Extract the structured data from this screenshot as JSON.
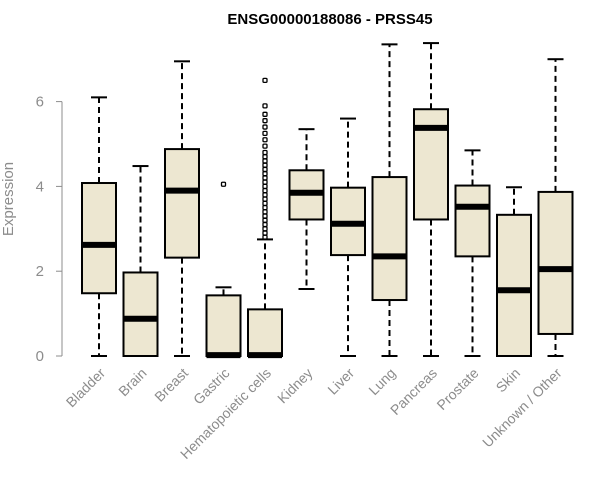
{
  "chart_data": {
    "type": "box",
    "title": "ENSG00000188086 - PRSS45",
    "xlabel": "",
    "ylabel": "Expression",
    "ylim": [
      0,
      7.4
    ],
    "yticks": [
      0,
      2,
      4,
      6
    ],
    "grid": false,
    "box_color": "#ede7d1",
    "categories": [
      "Bladder",
      "Brain",
      "Breast",
      "Gastric",
      "Hematopoietic cells",
      "Kidney",
      "Liver",
      "Lung",
      "Pancreas",
      "Prostate",
      "Skin",
      "Unknown / Other"
    ],
    "boxes": [
      {
        "category": "Bladder",
        "whisker_low": 0,
        "q1": 1.48,
        "median": 2.62,
        "q3": 4.08,
        "whisker_high": 6.1,
        "outliers": []
      },
      {
        "category": "Brain",
        "whisker_low": 0,
        "q1": 0,
        "median": 0.88,
        "q3": 1.97,
        "whisker_high": 4.48,
        "outliers": []
      },
      {
        "category": "Breast",
        "whisker_low": 0,
        "q1": 2.32,
        "median": 3.9,
        "q3": 4.88,
        "whisker_high": 6.95,
        "outliers": []
      },
      {
        "category": "Gastric",
        "whisker_low": 0,
        "q1": 0,
        "median": 0.02,
        "q3": 1.43,
        "whisker_high": 1.62,
        "outliers": [
          4.05
        ]
      },
      {
        "category": "Hematopoietic cells",
        "whisker_low": 0,
        "q1": 0,
        "median": 0.02,
        "q3": 1.1,
        "whisker_high": 2.75,
        "outliers": [
          2.8,
          2.9,
          3.0,
          3.1,
          3.2,
          3.3,
          3.4,
          3.5,
          3.6,
          3.7,
          3.8,
          3.9,
          4.0,
          4.1,
          4.2,
          4.3,
          4.4,
          4.5,
          4.6,
          4.7,
          4.8,
          4.95,
          5.1,
          5.25,
          5.4,
          5.55,
          5.7,
          5.9,
          6.5
        ]
      },
      {
        "category": "Kidney",
        "whisker_low": 1.58,
        "q1": 3.22,
        "median": 3.85,
        "q3": 4.38,
        "whisker_high": 5.35,
        "outliers": []
      },
      {
        "category": "Liver",
        "whisker_low": 0,
        "q1": 2.38,
        "median": 3.12,
        "q3": 3.97,
        "whisker_high": 5.6,
        "outliers": []
      },
      {
        "category": "Lung",
        "whisker_low": 0,
        "q1": 1.32,
        "median": 2.35,
        "q3": 4.22,
        "whisker_high": 7.35,
        "outliers": []
      },
      {
        "category": "Pancreas",
        "whisker_low": 0,
        "q1": 3.22,
        "median": 5.38,
        "q3": 5.82,
        "whisker_high": 7.38,
        "outliers": []
      },
      {
        "category": "Prostate",
        "whisker_low": 0,
        "q1": 2.35,
        "median": 3.52,
        "q3": 4.02,
        "whisker_high": 4.85,
        "outliers": []
      },
      {
        "category": "Skin",
        "whisker_low": 0,
        "q1": 0,
        "median": 1.55,
        "q3": 3.33,
        "whisker_high": 3.98,
        "outliers": []
      },
      {
        "category": "Unknown / Other",
        "whisker_low": 0,
        "q1": 0.52,
        "median": 2.05,
        "q3": 3.87,
        "whisker_high": 7.0,
        "outliers": []
      }
    ]
  }
}
